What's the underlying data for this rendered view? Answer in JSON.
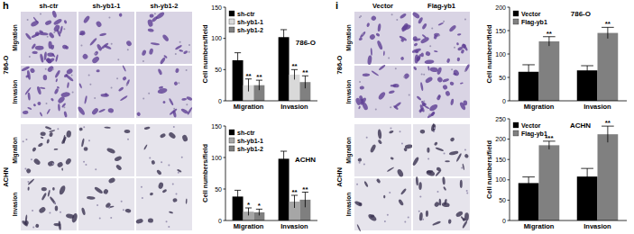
{
  "image_panels": [
    {
      "letter": "h",
      "columns": [
        "sh-ctr",
        "sh-yb1-1",
        "sh-yb1-2"
      ],
      "cell_lines": [
        "786-O",
        "ACHN"
      ],
      "assays": [
        "Migration",
        "Invasion"
      ]
    },
    {
      "letter": "i",
      "columns": [
        "Vector",
        "Flag-yb1"
      ],
      "cell_lines": [
        "786-O",
        "ACHN"
      ],
      "assays": [
        "Migration",
        "Invasion"
      ]
    }
  ],
  "chart_data": [
    {
      "type": "bar",
      "title": "786-O",
      "y_label": "Cell numbers/field",
      "categories": [
        "Migration",
        "Invasion"
      ],
      "series": [
        {
          "name": "sh-ctr",
          "color": "#000000",
          "values": [
            65,
            102
          ],
          "errors": [
            12,
            12
          ]
        },
        {
          "name": "sh-yb1-1",
          "color": "#d9d9d9",
          "values": [
            25,
            42
          ],
          "errors": [
            10,
            8
          ],
          "annotations": [
            "**",
            "**"
          ]
        },
        {
          "name": "sh-yb1-2",
          "color": "#808080",
          "values": [
            25,
            30
          ],
          "errors": [
            8,
            10
          ],
          "annotations": [
            "**",
            "**"
          ]
        }
      ],
      "ylim": [
        0,
        150
      ],
      "yticks": [
        0,
        50,
        100,
        150
      ],
      "legend": "upper left"
    },
    {
      "type": "bar",
      "title": "ACHN",
      "y_label": "Cell numbers/field",
      "categories": [
        "Migration",
        "Invasion"
      ],
      "series": [
        {
          "name": "sh-ctr",
          "color": "#000000",
          "values": [
            38,
            98
          ],
          "errors": [
            10,
            12
          ]
        },
        {
          "name": "sh-yb1-1",
          "color": "#a6a6a6",
          "values": [
            14,
            30
          ],
          "errors": [
            6,
            10
          ],
          "annotations": [
            "*",
            "**"
          ]
        },
        {
          "name": "sh-yb1-2",
          "color": "#7f7f7f",
          "values": [
            13,
            33
          ],
          "errors": [
            5,
            12
          ],
          "annotations": [
            "*",
            "**"
          ]
        }
      ],
      "ylim": [
        0,
        150
      ],
      "yticks": [
        0,
        50,
        100,
        150
      ],
      "legend": "upper left"
    },
    {
      "type": "bar",
      "title": "786-O",
      "y_label": "Cell numbers/field",
      "categories": [
        "Migration",
        "Invasion"
      ],
      "series": [
        {
          "name": "Vector",
          "color": "#000000",
          "values": [
            62,
            65
          ],
          "errors": [
            15,
            10
          ]
        },
        {
          "name": "Flag-yb1",
          "color": "#808080",
          "values": [
            127,
            145
          ],
          "errors": [
            10,
            12
          ],
          "annotations": [
            "**",
            "**"
          ]
        }
      ],
      "ylim": [
        0,
        200
      ],
      "yticks": [
        0,
        50,
        100,
        150,
        200
      ],
      "legend": "upper left"
    },
    {
      "type": "bar",
      "title": "ACHN",
      "y_label": "Cell numbers/field",
      "categories": [
        "Migration",
        "Invasion"
      ],
      "series": [
        {
          "name": "Vector",
          "color": "#000000",
          "values": [
            92,
            108
          ],
          "errors": [
            15,
            20
          ]
        },
        {
          "name": "Flag-yb1",
          "color": "#808080",
          "values": [
            185,
            212
          ],
          "errors": [
            10,
            20
          ],
          "annotations": [
            "***",
            "**"
          ]
        }
      ],
      "ylim": [
        0,
        250
      ],
      "yticks": [
        0,
        50,
        100,
        150,
        200,
        250
      ],
      "legend": "upper left"
    }
  ]
}
